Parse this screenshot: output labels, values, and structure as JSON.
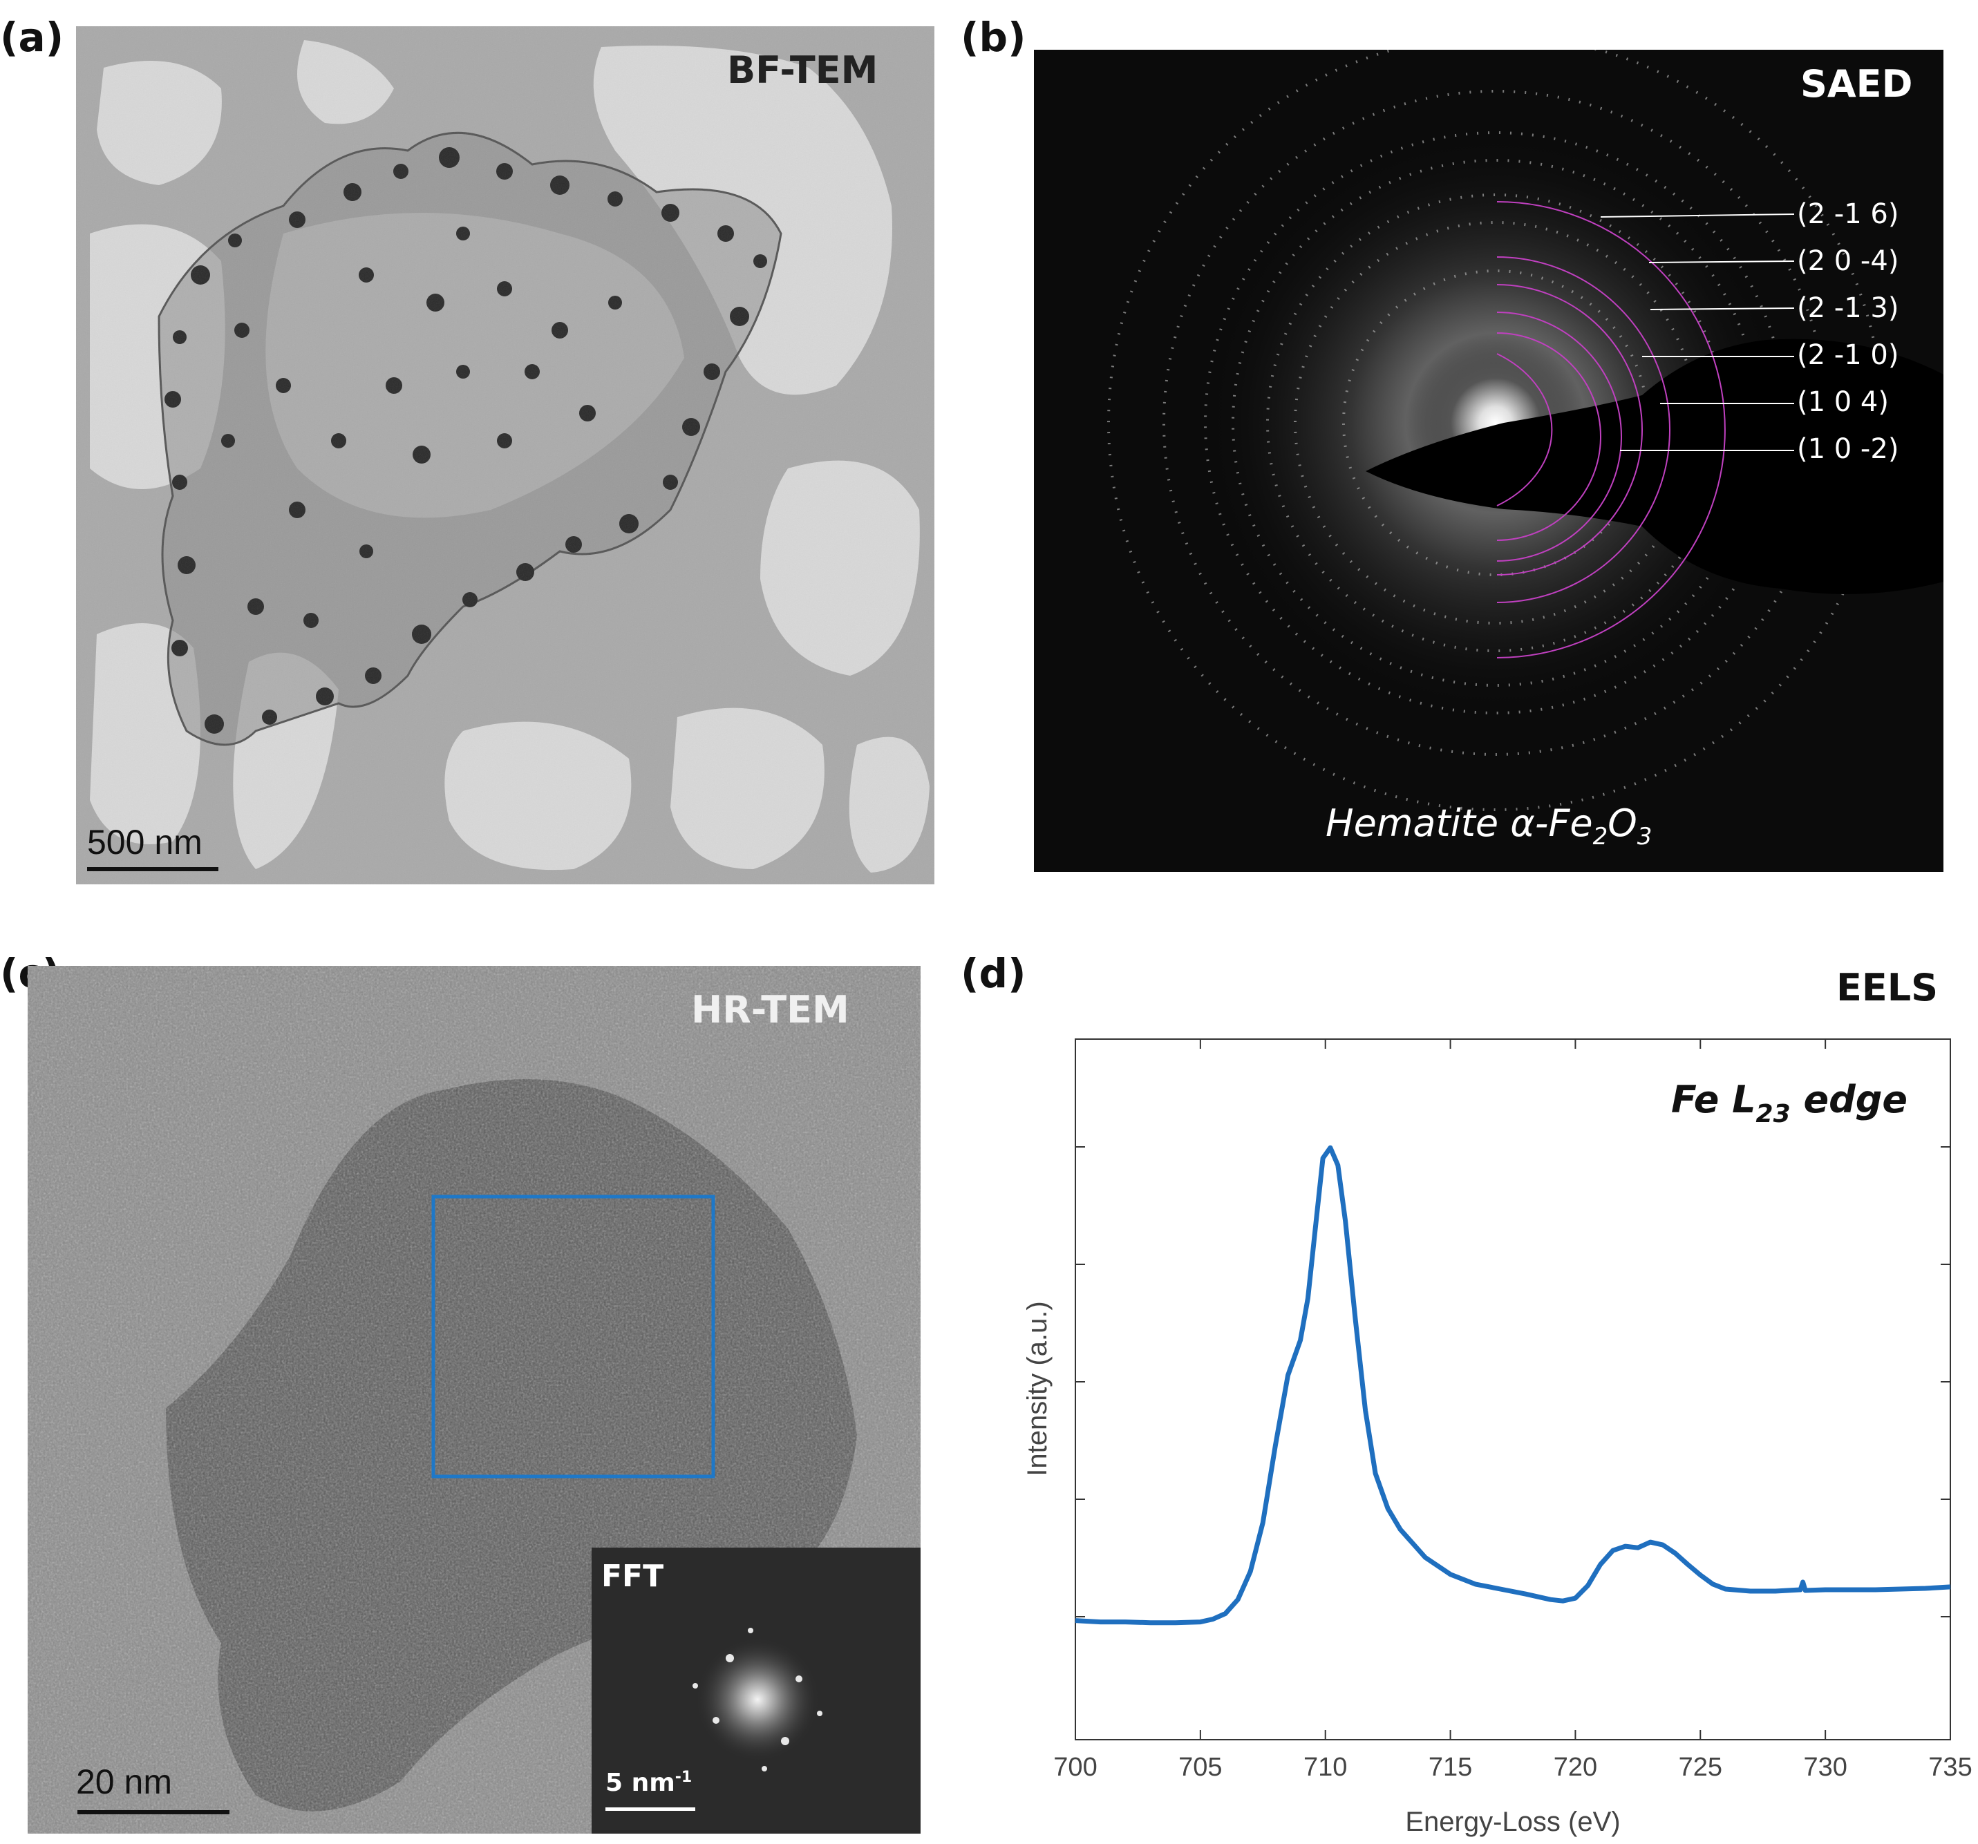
{
  "panels": {
    "a": {
      "label": "(a)",
      "title": "BF-TEM",
      "scale_bar": "500 nm"
    },
    "b": {
      "label": "(b)",
      "title": "SAED",
      "caption_pre": "Hematite α-Fe",
      "caption_sub1": "2",
      "caption_mid": "O",
      "caption_sub2": "3",
      "rings": [
        {
          "index": "(2 -1 6)"
        },
        {
          "index": "(2 0 -4)"
        },
        {
          "index": "(2 -1 3)"
        },
        {
          "index": "(2 -1 0)"
        },
        {
          "index": "(1 0 4)"
        },
        {
          "index": "(1 0 -2)"
        }
      ]
    },
    "c": {
      "label": "(c)",
      "title": "HR-TEM",
      "scale_bar": "20 nm",
      "inset_title": "FFT",
      "inset_scale_base": "5 nm",
      "inset_scale_exp": "-1"
    },
    "d": {
      "label": "(d)",
      "title": "EELS"
    }
  },
  "colors": {
    "spectrum": "#1f6fbf",
    "ring": "#c040c0",
    "roi_box": "#1e78c8"
  },
  "chart_data": {
    "type": "line",
    "title": "EELS",
    "annotation_base": "Fe L",
    "annotation_sub": "23",
    "annotation_tail": " edge",
    "xlabel": "Energy-Loss (eV)",
    "ylabel": "Intensity (a.u.)",
    "xlim": [
      700,
      735
    ],
    "ylim": [
      0,
      1
    ],
    "x_ticks": [
      700,
      705,
      710,
      715,
      720,
      725,
      730,
      735
    ],
    "series": [
      {
        "name": "Fe L23 edge",
        "x": [
          700,
          701,
          702,
          703,
          704,
          705,
          705.5,
          706,
          706.5,
          707,
          707.5,
          708,
          708.5,
          709,
          709.3,
          709.6,
          709.9,
          710.2,
          710.5,
          710.8,
          711.2,
          711.6,
          712,
          712.5,
          713,
          713.5,
          714,
          715,
          716,
          717,
          718,
          719,
          719.5,
          720,
          720.5,
          721,
          721.5,
          722,
          722.5,
          723,
          723.5,
          724,
          724.5,
          725,
          725.5,
          726,
          727,
          728,
          729,
          729.1,
          729.2,
          730,
          731,
          732,
          733,
          734,
          735
        ],
        "values": [
          0.17,
          0.168,
          0.168,
          0.167,
          0.167,
          0.168,
          0.172,
          0.18,
          0.2,
          0.24,
          0.31,
          0.42,
          0.52,
          0.57,
          0.63,
          0.73,
          0.83,
          0.845,
          0.82,
          0.74,
          0.6,
          0.47,
          0.38,
          0.33,
          0.3,
          0.28,
          0.26,
          0.236,
          0.222,
          0.215,
          0.208,
          0.2,
          0.198,
          0.202,
          0.22,
          0.25,
          0.27,
          0.276,
          0.274,
          0.282,
          0.278,
          0.266,
          0.25,
          0.235,
          0.222,
          0.215,
          0.212,
          0.212,
          0.214,
          0.225,
          0.213,
          0.214,
          0.214,
          0.214,
          0.215,
          0.216,
          0.218
        ]
      }
    ]
  }
}
